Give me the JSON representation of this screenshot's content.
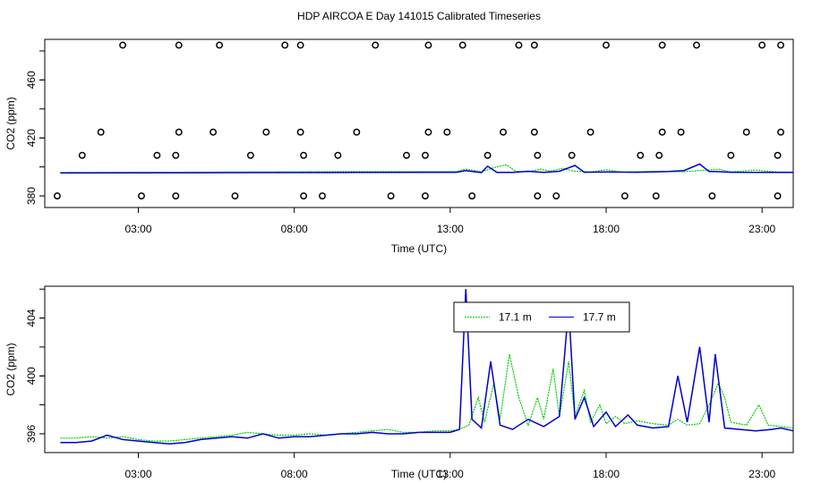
{
  "title": "HDP AIRCOA E  Day 141015  Calibrated Timeseries",
  "colors": {
    "green": "#00cc00",
    "blue": "#0000cc",
    "axis": "#000000",
    "markers": "#000000"
  },
  "chart_data": [
    {
      "type": "scatter",
      "panel": "top",
      "xlabel": "Time (UTC)",
      "ylabel": "CO2 (ppm)",
      "xlim": [
        0,
        24
      ],
      "ylim": [
        372,
        488
      ],
      "xticks": [
        3,
        8,
        13,
        18,
        23
      ],
      "xtick_labels": [
        "03:00",
        "08:00",
        "13:00",
        "18:00",
        "23:00"
      ],
      "yticks": [
        380,
        420,
        460
      ],
      "ytick_labels": [
        "380",
        "420",
        "460"
      ],
      "markers": [
        [
          0.4,
          380
        ],
        [
          1.2,
          408
        ],
        [
          1.8,
          424
        ],
        [
          2.5,
          484
        ],
        [
          3.1,
          380
        ],
        [
          3.6,
          408
        ],
        [
          4.2,
          380
        ],
        [
          4.2,
          408
        ],
        [
          4.3,
          424
        ],
        [
          4.3,
          484
        ],
        [
          5.4,
          424
        ],
        [
          5.6,
          484
        ],
        [
          6.1,
          380
        ],
        [
          6.6,
          408
        ],
        [
          7.1,
          424
        ],
        [
          7.7,
          484
        ],
        [
          8.2,
          424
        ],
        [
          8.2,
          484
        ],
        [
          8.3,
          380
        ],
        [
          8.3,
          408
        ],
        [
          8.9,
          380
        ],
        [
          9.4,
          408
        ],
        [
          10.0,
          424
        ],
        [
          10.6,
          484
        ],
        [
          11.1,
          380
        ],
        [
          11.6,
          408
        ],
        [
          12.2,
          380
        ],
        [
          12.2,
          408
        ],
        [
          12.3,
          424
        ],
        [
          12.3,
          484
        ],
        [
          12.9,
          424
        ],
        [
          13.4,
          484
        ],
        [
          13.7,
          380
        ],
        [
          14.2,
          408
        ],
        [
          14.7,
          424
        ],
        [
          15.2,
          484
        ],
        [
          15.7,
          424
        ],
        [
          15.7,
          484
        ],
        [
          15.8,
          380
        ],
        [
          15.8,
          408
        ],
        [
          16.4,
          380
        ],
        [
          16.9,
          408
        ],
        [
          17.5,
          424
        ],
        [
          18.0,
          484
        ],
        [
          18.6,
          380
        ],
        [
          19.1,
          408
        ],
        [
          19.6,
          380
        ],
        [
          19.7,
          408
        ],
        [
          19.8,
          424
        ],
        [
          19.8,
          484
        ],
        [
          20.4,
          424
        ],
        [
          20.9,
          484
        ],
        [
          21.4,
          380
        ],
        [
          22.0,
          408
        ],
        [
          22.5,
          424
        ],
        [
          23.0,
          484
        ],
        [
          23.5,
          380
        ],
        [
          23.5,
          408
        ],
        [
          23.6,
          424
        ],
        [
          23.6,
          484
        ]
      ],
      "series": [
        {
          "color": "green",
          "values": [
            [
              0.5,
              396.2
            ],
            [
              5,
              396.4
            ],
            [
              10,
              396.8
            ],
            [
              13.2,
              396.8
            ],
            [
              13.5,
              398.5
            ],
            [
              14.0,
              396.6
            ],
            [
              14.4,
              399.5
            ],
            [
              14.8,
              401.5
            ],
            [
              15.1,
              397.0
            ],
            [
              15.5,
              396.6
            ],
            [
              15.9,
              398.5
            ],
            [
              16.2,
              397.0
            ],
            [
              16.6,
              399.0
            ],
            [
              17.0,
              397.0
            ],
            [
              17.5,
              396.6
            ],
            [
              18.0,
              398.0
            ],
            [
              18.5,
              396.5
            ],
            [
              19.5,
              396.9
            ],
            [
              20.5,
              396.7
            ],
            [
              21.6,
              398.5
            ],
            [
              22.0,
              396.6
            ],
            [
              22.8,
              397.8
            ],
            [
              23.5,
              396.5
            ],
            [
              24,
              396.5
            ]
          ]
        },
        {
          "color": "blue",
          "values": [
            [
              0.5,
              395.8
            ],
            [
              5,
              396.0
            ],
            [
              10,
              396.2
            ],
            [
              13.2,
              396.3
            ],
            [
              13.5,
              397.5
            ],
            [
              14.0,
              396.1
            ],
            [
              14.2,
              400.5
            ],
            [
              14.5,
              396.2
            ],
            [
              15.0,
              396.2
            ],
            [
              15.5,
              397.0
            ],
            [
              16.0,
              396.2
            ],
            [
              16.5,
              397.0
            ],
            [
              17.0,
              401.0
            ],
            [
              17.3,
              396.3
            ],
            [
              18.0,
              396.5
            ],
            [
              19.0,
              396.3
            ],
            [
              20.0,
              396.8
            ],
            [
              20.5,
              397.5
            ],
            [
              21.0,
              402.0
            ],
            [
              21.3,
              396.8
            ],
            [
              21.5,
              396.8
            ],
            [
              22.0,
              396.3
            ],
            [
              23.5,
              396.2
            ],
            [
              24,
              396.2
            ]
          ]
        }
      ]
    },
    {
      "type": "line",
      "panel": "bottom",
      "xlabel": "Time (UTC)",
      "ylabel": "CO2 (ppm)",
      "xlim": [
        0,
        24
      ],
      "ylim": [
        394.7,
        406.2
      ],
      "xticks": [
        3,
        8,
        13,
        18,
        23
      ],
      "xtick_labels": [
        "03:00",
        "08:00",
        "13:00",
        "18:00",
        "23:00"
      ],
      "yticks": [
        396,
        400,
        404
      ],
      "ytick_labels": [
        "396",
        "400",
        "404"
      ],
      "legend": {
        "placement": "top-center",
        "entries": [
          "17.1 m",
          "17.7 m"
        ]
      },
      "series": [
        {
          "name": "17.1 m",
          "color": "green",
          "values": [
            [
              0.5,
              395.7
            ],
            [
              1.0,
              395.7
            ],
            [
              1.5,
              395.8
            ],
            [
              2.0,
              395.7
            ],
            [
              2.5,
              395.8
            ],
            [
              3.0,
              395.6
            ],
            [
              3.5,
              395.5
            ],
            [
              4.0,
              395.5
            ],
            [
              4.5,
              395.6
            ],
            [
              5.0,
              395.7
            ],
            [
              5.5,
              395.8
            ],
            [
              6.0,
              395.9
            ],
            [
              6.5,
              396.1
            ],
            [
              7.0,
              396.0
            ],
            [
              7.5,
              395.9
            ],
            [
              8.0,
              395.9
            ],
            [
              8.5,
              396.0
            ],
            [
              9.0,
              395.9
            ],
            [
              9.5,
              396.0
            ],
            [
              10.0,
              396.1
            ],
            [
              10.5,
              396.2
            ],
            [
              11.0,
              396.3
            ],
            [
              11.5,
              396.1
            ],
            [
              12.0,
              396.1
            ],
            [
              12.5,
              396.2
            ],
            [
              13.0,
              396.2
            ],
            [
              13.3,
              396.3
            ],
            [
              13.6,
              396.6
            ],
            [
              13.9,
              398.5
            ],
            [
              14.1,
              396.8
            ],
            [
              14.4,
              399.5
            ],
            [
              14.6,
              397.0
            ],
            [
              14.9,
              401.5
            ],
            [
              15.2,
              398.5
            ],
            [
              15.5,
              396.6
            ],
            [
              15.8,
              398.5
            ],
            [
              16.0,
              397.0
            ],
            [
              16.3,
              400.5
            ],
            [
              16.5,
              397.2
            ],
            [
              16.8,
              401.0
            ],
            [
              17.0,
              397.2
            ],
            [
              17.3,
              399.0
            ],
            [
              17.5,
              396.8
            ],
            [
              17.8,
              398.0
            ],
            [
              18.0,
              396.7
            ],
            [
              18.3,
              397.2
            ],
            [
              18.6,
              396.7
            ],
            [
              19.0,
              396.9
            ],
            [
              19.5,
              396.7
            ],
            [
              20.0,
              396.6
            ],
            [
              20.3,
              397.0
            ],
            [
              20.6,
              396.6
            ],
            [
              21.0,
              396.7
            ],
            [
              21.3,
              398.0
            ],
            [
              21.6,
              399.5
            ],
            [
              21.8,
              398.5
            ],
            [
              22.0,
              396.8
            ],
            [
              22.5,
              396.6
            ],
            [
              22.9,
              398.0
            ],
            [
              23.2,
              396.6
            ],
            [
              23.6,
              396.5
            ],
            [
              24,
              396.4
            ]
          ]
        },
        {
          "name": "17.7 m",
          "color": "blue",
          "values": [
            [
              0.5,
              395.4
            ],
            [
              1.0,
              395.4
            ],
            [
              1.5,
              395.5
            ],
            [
              2.0,
              395.9
            ],
            [
              2.5,
              395.6
            ],
            [
              3.0,
              395.5
            ],
            [
              3.5,
              395.4
            ],
            [
              4.0,
              395.3
            ],
            [
              4.5,
              395.4
            ],
            [
              5.0,
              395.6
            ],
            [
              5.5,
              395.7
            ],
            [
              6.0,
              395.8
            ],
            [
              6.5,
              395.7
            ],
            [
              7.0,
              396.0
            ],
            [
              7.5,
              395.7
            ],
            [
              8.0,
              395.8
            ],
            [
              8.5,
              395.8
            ],
            [
              9.0,
              395.9
            ],
            [
              9.5,
              396.0
            ],
            [
              10.0,
              396.0
            ],
            [
              10.5,
              396.1
            ],
            [
              11.0,
              396.0
            ],
            [
              11.5,
              396.0
            ],
            [
              12.0,
              396.1
            ],
            [
              12.5,
              396.1
            ],
            [
              13.0,
              396.1
            ],
            [
              13.3,
              396.3
            ],
            [
              13.5,
              406.0
            ],
            [
              13.7,
              397.0
            ],
            [
              14.0,
              396.4
            ],
            [
              14.3,
              401.0
            ],
            [
              14.6,
              396.6
            ],
            [
              15.0,
              396.3
            ],
            [
              15.5,
              397.0
            ],
            [
              16.0,
              396.5
            ],
            [
              16.5,
              397.2
            ],
            [
              16.8,
              404.8
            ],
            [
              17.0,
              397.0
            ],
            [
              17.3,
              398.5
            ],
            [
              17.6,
              396.5
            ],
            [
              18.0,
              397.5
            ],
            [
              18.3,
              396.5
            ],
            [
              18.7,
              397.3
            ],
            [
              19.0,
              396.6
            ],
            [
              19.5,
              396.4
            ],
            [
              20.0,
              396.5
            ],
            [
              20.3,
              400.0
            ],
            [
              20.6,
              396.8
            ],
            [
              21.0,
              402.0
            ],
            [
              21.3,
              396.8
            ],
            [
              21.5,
              401.5
            ],
            [
              21.8,
              396.4
            ],
            [
              22.3,
              396.3
            ],
            [
              22.8,
              396.2
            ],
            [
              23.3,
              396.3
            ],
            [
              23.6,
              396.4
            ],
            [
              24,
              396.2
            ]
          ]
        }
      ]
    }
  ]
}
